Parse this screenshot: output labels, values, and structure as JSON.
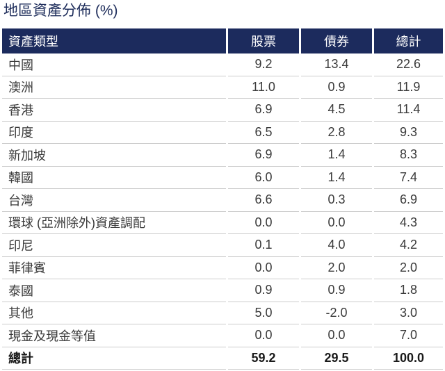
{
  "title": "地區資產分佈 (%)",
  "colors": {
    "title": "#1e2d5b",
    "header_bg": "#1c2b5d",
    "header_text": "#ffffff",
    "text": "#3a3a3a",
    "rule": "#cccccc"
  },
  "table": {
    "headers": [
      "資產類型",
      "股票",
      "債券",
      "總計"
    ],
    "rows": [
      [
        "中國",
        "9.2",
        "13.4",
        "22.6"
      ],
      [
        "澳洲",
        "11.0",
        "0.9",
        "11.9"
      ],
      [
        "香港",
        "6.9",
        "4.5",
        "11.4"
      ],
      [
        "印度",
        "6.5",
        "2.8",
        "9.3"
      ],
      [
        "新加坡",
        "6.9",
        "1.4",
        "8.3"
      ],
      [
        "韓國",
        "6.0",
        "1.4",
        "7.4"
      ],
      [
        "台灣",
        "6.6",
        "0.3",
        "6.9"
      ],
      [
        "環球 (亞洲除外)資產調配",
        "0.0",
        "0.0",
        "4.3"
      ],
      [
        "印尼",
        "0.1",
        "4.0",
        "4.2"
      ],
      [
        "菲律賓",
        "0.0",
        "2.0",
        "2.0"
      ],
      [
        "泰國",
        "0.9",
        "0.9",
        "1.8"
      ],
      [
        "其他",
        "5.0",
        "-2.0",
        "3.0"
      ],
      [
        "現金及現金等值",
        "0.0",
        "0.0",
        "7.0"
      ]
    ],
    "total": [
      "總計",
      "59.2",
      "29.5",
      "100.0"
    ]
  }
}
